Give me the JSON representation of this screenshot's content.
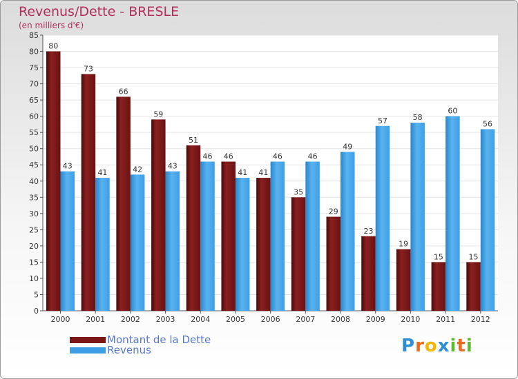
{
  "title": "Revenus/Dette - BRESLE",
  "subtitle": "(en milliers d'€)",
  "logo": {
    "text": "Proxiti",
    "letters": [
      "P",
      "r",
      "o",
      "x",
      "i",
      "t",
      "i"
    ],
    "colors": [
      "#2e8fd6",
      "#e96a1c",
      "#f2b705",
      "#2e8fd6",
      "#5cb82c",
      "#e96a1c",
      "#5cb82c"
    ]
  },
  "colors": {
    "dette": "#7a1616",
    "revenus": "#3d9ee6",
    "title": "#b0305a",
    "legend_text": "#5577cc"
  },
  "chart_data": {
    "type": "bar",
    "title": "Revenus/Dette - BRESLE",
    "subtitle": "(en milliers d'€)",
    "categories": [
      "2000",
      "2001",
      "2002",
      "2003",
      "2004",
      "2005",
      "2006",
      "2007",
      "2008",
      "2009",
      "2010",
      "2011",
      "2012"
    ],
    "series": [
      {
        "name": "Montant de la Dette",
        "values": [
          80,
          73,
          66,
          59,
          51,
          46,
          41,
          35,
          29,
          23,
          19,
          15,
          15
        ]
      },
      {
        "name": "Revenus",
        "values": [
          43,
          41,
          42,
          43,
          46,
          41,
          46,
          46,
          49,
          57,
          58,
          60,
          56
        ]
      }
    ],
    "ylim": [
      0,
      85
    ],
    "yticks": [
      0,
      5,
      10,
      15,
      20,
      25,
      30,
      35,
      40,
      45,
      50,
      55,
      60,
      65,
      70,
      75,
      80,
      85
    ],
    "grid": true,
    "legend": "bottom-left"
  }
}
